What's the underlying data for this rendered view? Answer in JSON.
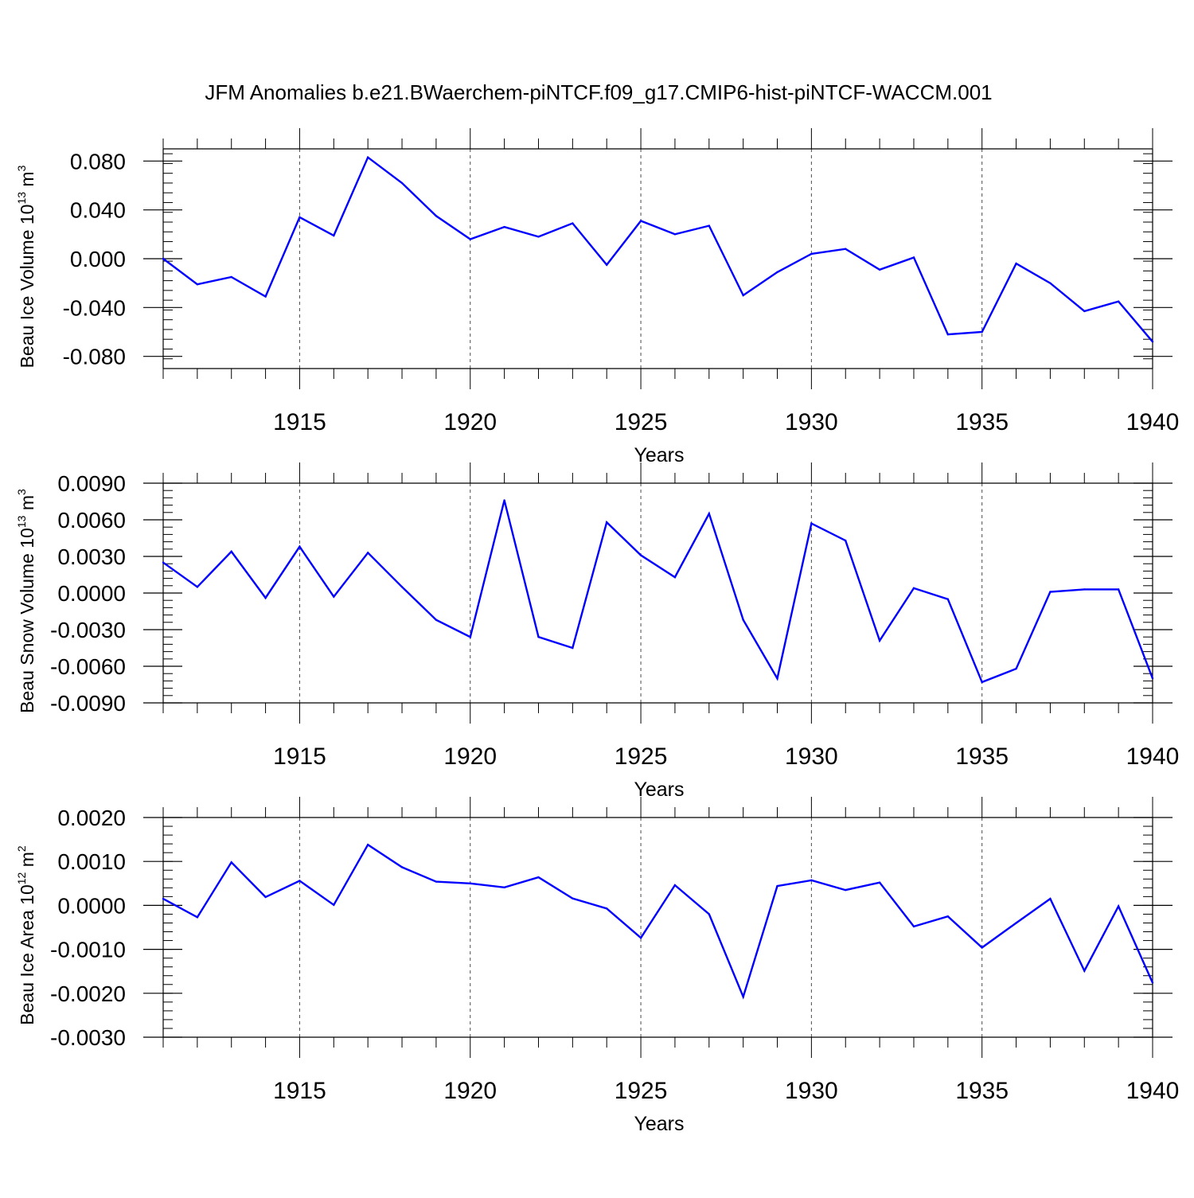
{
  "title": "JFM Anomalies b.e21.BWaerchem-piNTCF.f09_g17.CMIP6-hist-piNTCF-WACCM.001",
  "colors": {
    "series": "#0000ff",
    "axis": "#000000",
    "grid": "#000000"
  },
  "chart_data": [
    {
      "type": "line",
      "ylabel": {
        "main": "Beau Ice Volume 10",
        "exp": "13",
        "unit": " m",
        "unit_exp": "3"
      },
      "xlabel": "Years",
      "xlim": [
        1911,
        1940
      ],
      "ylim": [
        -0.09,
        0.09
      ],
      "yticks": [
        {
          "v": 0.08,
          "label": "0.080"
        },
        {
          "v": 0.04,
          "label": "0.040"
        },
        {
          "v": 0.0,
          "label": "0.000"
        },
        {
          "v": -0.04,
          "label": "-0.040"
        },
        {
          "v": -0.08,
          "label": "-0.080"
        }
      ],
      "yminor_step": 0.008,
      "xticks": [
        {
          "v": 1915,
          "label": "1915"
        },
        {
          "v": 1920,
          "label": "1920"
        },
        {
          "v": 1925,
          "label": "1925"
        },
        {
          "v": 1930,
          "label": "1930"
        },
        {
          "v": 1935,
          "label": "1935"
        },
        {
          "v": 1940,
          "label": "1940"
        }
      ],
      "x": [
        1911,
        1912,
        1913,
        1914,
        1915,
        1916,
        1917,
        1918,
        1919,
        1920,
        1921,
        1922,
        1923,
        1924,
        1925,
        1926,
        1927,
        1928,
        1929,
        1930,
        1931,
        1932,
        1933,
        1934,
        1935,
        1936,
        1937,
        1938,
        1939,
        1940
      ],
      "values": [
        0.0,
        -0.021,
        -0.015,
        -0.031,
        0.034,
        0.019,
        0.083,
        0.062,
        0.035,
        0.016,
        0.026,
        0.018,
        0.029,
        -0.005,
        0.031,
        0.02,
        0.027,
        -0.03,
        -0.011,
        0.004,
        0.008,
        -0.009,
        0.001,
        -0.062,
        -0.06,
        -0.004,
        -0.02,
        -0.043,
        -0.035,
        -0.068
      ]
    },
    {
      "type": "line",
      "ylabel": {
        "main": "Beau Snow Volume 10",
        "exp": "13",
        "unit": " m",
        "unit_exp": "3"
      },
      "xlabel": "Years",
      "xlim": [
        1911,
        1940
      ],
      "ylim": [
        -0.009,
        0.009
      ],
      "yticks": [
        {
          "v": 0.009,
          "label": "0.0090"
        },
        {
          "v": 0.006,
          "label": "0.0060"
        },
        {
          "v": 0.003,
          "label": "0.0030"
        },
        {
          "v": 0.0,
          "label": "0.0000"
        },
        {
          "v": -0.003,
          "label": "-0.0030"
        },
        {
          "v": -0.006,
          "label": "-0.0060"
        },
        {
          "v": -0.009,
          "label": "-0.0090"
        }
      ],
      "yminor_step": 0.0006,
      "xticks": [
        {
          "v": 1915,
          "label": "1915"
        },
        {
          "v": 1920,
          "label": "1920"
        },
        {
          "v": 1925,
          "label": "1925"
        },
        {
          "v": 1930,
          "label": "1930"
        },
        {
          "v": 1935,
          "label": "1935"
        },
        {
          "v": 1940,
          "label": "1940"
        }
      ],
      "x": [
        1911,
        1912,
        1913,
        1914,
        1915,
        1916,
        1917,
        1918,
        1919,
        1920,
        1921,
        1922,
        1923,
        1924,
        1925,
        1926,
        1927,
        1928,
        1929,
        1930,
        1931,
        1932,
        1933,
        1934,
        1935,
        1936,
        1937,
        1938,
        1939,
        1940
      ],
      "values": [
        0.0025,
        0.0005,
        0.0034,
        -0.0004,
        0.0038,
        -0.0003,
        0.0033,
        0.0005,
        -0.0022,
        -0.0036,
        0.0076,
        -0.0036,
        -0.0045,
        0.0058,
        0.0031,
        0.0013,
        0.0065,
        -0.0022,
        -0.007,
        0.0057,
        0.0043,
        -0.0039,
        0.0004,
        -0.0005,
        -0.0073,
        -0.0062,
        0.0001,
        0.0003,
        0.0003,
        -0.007
      ]
    },
    {
      "type": "line",
      "ylabel": {
        "main": "Beau Ice Area 10",
        "exp": "12",
        "unit": " m",
        "unit_exp": "2"
      },
      "xlabel": "Years",
      "xlim": [
        1911,
        1940
      ],
      "ylim": [
        -0.003,
        0.002
      ],
      "yticks": [
        {
          "v": 0.002,
          "label": "0.0020"
        },
        {
          "v": 0.001,
          "label": "0.0010"
        },
        {
          "v": 0.0,
          "label": "0.0000"
        },
        {
          "v": -0.001,
          "label": "-0.0010"
        },
        {
          "v": -0.002,
          "label": "-0.0020"
        },
        {
          "v": -0.003,
          "label": "-0.0030"
        }
      ],
      "yminor_step": 0.0002,
      "xticks": [
        {
          "v": 1915,
          "label": "1915"
        },
        {
          "v": 1920,
          "label": "1920"
        },
        {
          "v": 1925,
          "label": "1925"
        },
        {
          "v": 1930,
          "label": "1930"
        },
        {
          "v": 1935,
          "label": "1935"
        },
        {
          "v": 1940,
          "label": "1940"
        }
      ],
      "x": [
        1911,
        1912,
        1913,
        1914,
        1915,
        1916,
        1917,
        1918,
        1919,
        1920,
        1921,
        1922,
        1923,
        1924,
        1925,
        1926,
        1927,
        1928,
        1929,
        1930,
        1931,
        1932,
        1933,
        1934,
        1935,
        1936,
        1937,
        1938,
        1939,
        1940
      ],
      "values": [
        0.00015,
        -0.00027,
        0.00098,
        0.00019,
        0.00056,
        1e-05,
        0.00138,
        0.00087,
        0.00054,
        0.0005,
        0.00041,
        0.00064,
        0.00016,
        -7e-05,
        -0.00074,
        0.00046,
        -0.0002,
        -0.00208,
        0.00044,
        0.00057,
        0.00035,
        0.00052,
        -0.00048,
        -0.00025,
        -0.00096,
        -0.0004,
        0.00015,
        -0.00149,
        -2e-05,
        -0.00176
      ]
    }
  ]
}
